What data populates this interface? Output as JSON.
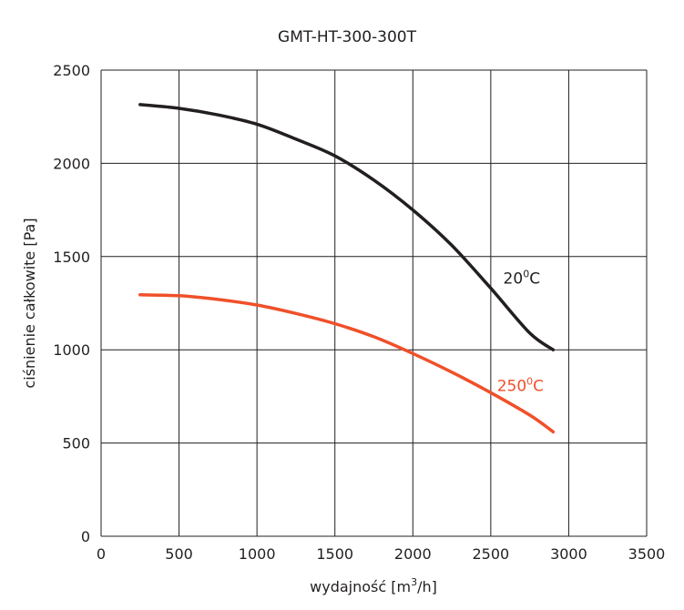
{
  "chart_data": {
    "type": "line",
    "title": "GMT-HT-300-300T",
    "xlabel_pre": "wydajność [m",
    "xlabel_sup": "3",
    "xlabel_post": "/h]",
    "ylabel": "ciśnienie całkowite [Pa]",
    "xlim": [
      0,
      3500
    ],
    "ylim": [
      0,
      2500
    ],
    "xticks": [
      0,
      500,
      1000,
      1500,
      2000,
      2500,
      3000,
      3500
    ],
    "yticks": [
      0,
      500,
      1000,
      1500,
      2000,
      2500
    ],
    "grid": true,
    "series": [
      {
        "name": "20",
        "name_sup": "0",
        "name_post": "C",
        "color": "#231f20",
        "x": [
          250,
          500,
          750,
          1000,
          1250,
          1500,
          1750,
          2000,
          2250,
          2500,
          2750,
          2900
        ],
        "y": [
          2315,
          2295,
          2260,
          2210,
          2130,
          2040,
          1910,
          1750,
          1560,
          1330,
          1090,
          1000
        ]
      },
      {
        "name": "250",
        "name_sup": "0",
        "name_post": "C",
        "color": "#f0502a",
        "x": [
          250,
          500,
          750,
          1000,
          1250,
          1500,
          1750,
          2000,
          2250,
          2500,
          2750,
          2900
        ],
        "y": [
          1295,
          1290,
          1270,
          1240,
          1195,
          1140,
          1070,
          980,
          880,
          770,
          650,
          560
        ]
      }
    ]
  }
}
